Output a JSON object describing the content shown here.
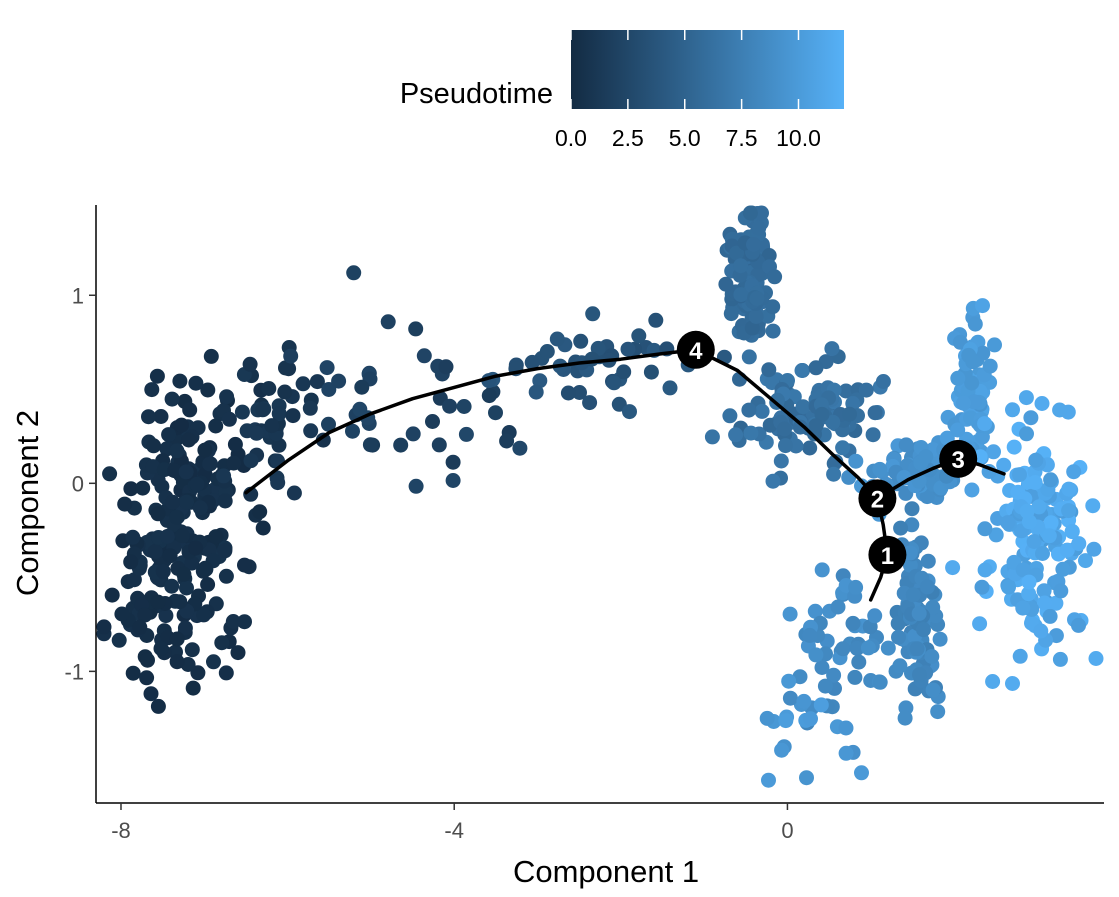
{
  "chart_data": {
    "type": "scatter",
    "title": "",
    "xlabel": "Component 1",
    "ylabel": "Component 2",
    "xlim": [
      -8.3,
      3.8
    ],
    "ylim": [
      -1.7,
      1.48
    ],
    "xticks": [
      -8,
      -4,
      0
    ],
    "xtick_labels": [
      "-8",
      "-4",
      "0"
    ],
    "yticks": [
      -1,
      0,
      1
    ],
    "ytick_labels": [
      "-1",
      "0",
      "1"
    ],
    "grid": false,
    "legend": {
      "title": "Pseudotime",
      "position": "top",
      "range": [
        0,
        12
      ],
      "ticks": [
        0,
        2.5,
        5,
        7.5,
        10
      ],
      "tick_labels": [
        "0.0",
        "2.5",
        "5.0",
        "7.5",
        "10.0"
      ],
      "color_low": "#132B43",
      "color_high": "#56B1F7"
    },
    "colors": {
      "low": "#132B43",
      "high": "#56B1F7",
      "trajectory": "#000000",
      "node_fill": "#000000",
      "node_text": "#ffffff"
    },
    "branch_nodes": [
      {
        "label": "1",
        "x": 1.2,
        "y": -0.38
      },
      {
        "label": "2",
        "x": 1.08,
        "y": -0.08
      },
      {
        "label": "3",
        "x": 2.05,
        "y": 0.13
      },
      {
        "label": "4",
        "x": -1.1,
        "y": 0.71
      }
    ],
    "trajectory": [
      [
        [
          -6.5,
          -0.05
        ],
        [
          -6.0,
          0.12
        ],
        [
          -5.5,
          0.27
        ],
        [
          -5.0,
          0.37
        ],
        [
          -4.5,
          0.45
        ],
        [
          -4.0,
          0.51
        ],
        [
          -3.5,
          0.57
        ],
        [
          -3.0,
          0.61
        ],
        [
          -2.5,
          0.64
        ],
        [
          -2.0,
          0.66
        ],
        [
          -1.5,
          0.69
        ],
        [
          -1.1,
          0.71
        ]
      ],
      [
        [
          -1.1,
          0.71
        ],
        [
          -0.6,
          0.6
        ],
        [
          -0.2,
          0.45
        ],
        [
          0.2,
          0.3
        ],
        [
          0.55,
          0.15
        ],
        [
          0.85,
          0.03
        ],
        [
          1.08,
          -0.08
        ]
      ],
      [
        [
          1.08,
          -0.08
        ],
        [
          1.15,
          -0.22
        ],
        [
          1.2,
          -0.38
        ],
        [
          1.12,
          -0.5
        ],
        [
          1.0,
          -0.62
        ]
      ],
      [
        [
          1.08,
          -0.08
        ],
        [
          1.45,
          0.02
        ],
        [
          1.75,
          0.08
        ],
        [
          2.05,
          0.13
        ]
      ],
      [
        [
          2.05,
          0.13
        ],
        [
          2.3,
          0.1
        ],
        [
          2.6,
          0.05
        ]
      ]
    ],
    "clusters": [
      {
        "n": 220,
        "cx": -7.2,
        "cy": -0.2,
        "sx": 0.38,
        "sy": 0.35,
        "t0": 0.1,
        "t1": 0.7,
        "seed": 11
      },
      {
        "n": 25,
        "cx": -7.6,
        "cy": -0.85,
        "sx": 0.25,
        "sy": 0.22,
        "t0": 0.1,
        "t1": 0.4,
        "seed": 12
      },
      {
        "n": 45,
        "cx": -6.2,
        "cy": 0.3,
        "sx": 0.35,
        "sy": 0.18,
        "t0": 0.6,
        "t1": 1.2,
        "seed": 13
      },
      {
        "n": 40,
        "cx": -4.4,
        "cy": 0.5,
        "sx": 0.7,
        "sy": 0.22,
        "t0": 1.4,
        "t1": 2.6,
        "seed": 14
      },
      {
        "n": 45,
        "cx": -2.3,
        "cy": 0.62,
        "sx": 0.6,
        "sy": 0.12,
        "t0": 3.0,
        "t1": 4.2,
        "seed": 15
      },
      {
        "n": 110,
        "cx": -0.45,
        "cy": 1.08,
        "sx": 0.13,
        "sy": 0.17,
        "t0": 5.2,
        "t1": 6.2,
        "seed": 16
      },
      {
        "n": 110,
        "cx": 0.25,
        "cy": 0.36,
        "sx": 0.45,
        "sy": 0.12,
        "t0": 5.5,
        "t1": 7.0,
        "seed": 17
      },
      {
        "n": 50,
        "cx": 0.6,
        "cy": -0.85,
        "sx": 0.28,
        "sy": 0.2,
        "t0": 8.0,
        "t1": 9.5,
        "seed": 18
      },
      {
        "n": 18,
        "cx": 0.2,
        "cy": -1.38,
        "sx": 0.35,
        "sy": 0.12,
        "t0": 9.0,
        "t1": 10.5,
        "seed": 19
      },
      {
        "n": 95,
        "cx": 1.55,
        "cy": -0.7,
        "sx": 0.12,
        "sy": 0.28,
        "t0": 7.5,
        "t1": 9.0,
        "seed": 20
      },
      {
        "n": 70,
        "cx": 1.6,
        "cy": 0.06,
        "sx": 0.28,
        "sy": 0.08,
        "t0": 8.5,
        "t1": 9.8,
        "seed": 21
      },
      {
        "n": 85,
        "cx": 2.2,
        "cy": 0.5,
        "sx": 0.1,
        "sy": 0.18,
        "t0": 9.5,
        "t1": 10.8,
        "seed": 22
      },
      {
        "n": 170,
        "cx": 3.0,
        "cy": -0.3,
        "sx": 0.28,
        "sy": 0.3,
        "t0": 10.0,
        "t1": 12.0,
        "seed": 23
      }
    ]
  }
}
